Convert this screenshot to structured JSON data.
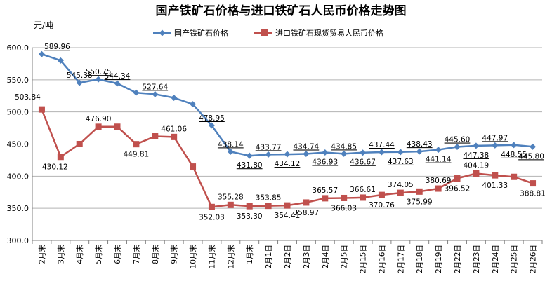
{
  "chart_data": {
    "type": "line",
    "title": "国产铁矿石价格与进口铁矿石人民币价格走势图",
    "ylabel": "元/吨",
    "ylim": [
      300,
      600
    ],
    "yticks": [
      "300.0",
      "350.0",
      "400.0",
      "450.0",
      "500.0",
      "550.0",
      "600.0"
    ],
    "grid": true,
    "legend": "top",
    "categories": [
      "2月末",
      "3月末",
      "4月末",
      "5月末",
      "6月末",
      "7月末",
      "8月末",
      "9月末",
      "10月末",
      "11月末",
      "12月末",
      "1月末",
      "2月1日",
      "2月2日",
      "2月3日",
      "2月4日",
      "2月5日",
      "2月15日",
      "2月16日",
      "2月17日",
      "2月18日",
      "2月19日",
      "2月22日",
      "2月23日",
      "2月24日",
      "2月25日",
      "2月26日"
    ],
    "series": [
      {
        "name": "国产铁矿石价格",
        "color": "#4F81BD",
        "marker": "diamond",
        "values": [
          589.96,
          580,
          545.38,
          550.75,
          544.34,
          530,
          527.64,
          522,
          512,
          478.95,
          438.14,
          431.8,
          433.77,
          434.12,
          434.74,
          436.93,
          434.85,
          436.67,
          437.44,
          437.63,
          438.43,
          441.14,
          445.6,
          447.38,
          447.97,
          448.55,
          445.8
        ],
        "labels": [
          "589.96",
          "",
          "545.38",
          "550.75",
          "544.34",
          "",
          "527.64",
          "",
          "",
          "478.95",
          "438.14",
          "431.80",
          "433.77",
          "434.12",
          "434.74",
          "436.93",
          "434.85",
          "436.67",
          "437.44",
          "437.63",
          "438.43",
          "441.14",
          "445.60",
          "447.38",
          "447.97",
          "448.55",
          "445.80"
        ]
      },
      {
        "name": "进口铁矿石现货贸易人民币价格",
        "color": "#C0504D",
        "marker": "square",
        "values": [
          503.84,
          430.12,
          450,
          476.9,
          477,
          449.81,
          462,
          461.06,
          415,
          352.03,
          355.28,
          353.3,
          353.85,
          354.41,
          358.97,
          365.57,
          366.03,
          366.61,
          370.76,
          374.05,
          375.99,
          380.69,
          396.52,
          404.19,
          401.33,
          399,
          388.81
        ],
        "labels": [
          "503.84",
          "430.12",
          "",
          "476.90",
          "",
          "449.81",
          "",
          "461.06",
          "",
          "352.03",
          "355.28",
          "353.30",
          "353.85",
          "354.41",
          "358.97",
          "365.57",
          "366.03",
          "366.61",
          "370.76",
          "374.05",
          "375.99",
          "380.69",
          "396.52",
          "404.19",
          "401.33",
          "",
          "388.81"
        ]
      }
    ]
  }
}
